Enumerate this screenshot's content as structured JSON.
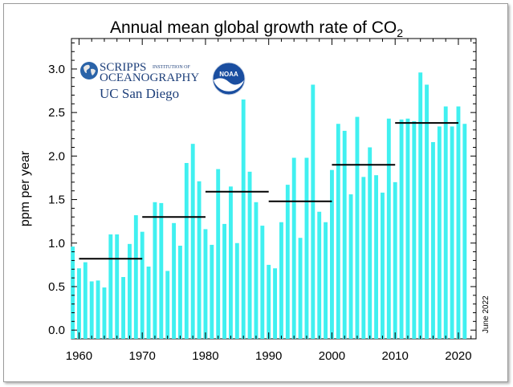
{
  "chart_data": {
    "type": "bar",
    "title_main": "Annual mean global growth rate of CO",
    "title_subscript": "2",
    "ylabel": "ppm per year",
    "xlabel": "",
    "ylim": [
      -0.1,
      3.35
    ],
    "xlim": [
      1958.8,
      2022.8
    ],
    "yticks": [
      0.0,
      0.5,
      1.0,
      1.5,
      2.0,
      2.5,
      3.0
    ],
    "ytick_labels": [
      "0.0",
      "0.5",
      "1.0",
      "1.5",
      "2.0",
      "2.5",
      "3.0"
    ],
    "xticks": [
      1960,
      1970,
      1980,
      1990,
      2000,
      2010,
      2020
    ],
    "xtick_labels": [
      "1960",
      "1970",
      "1980",
      "1990",
      "2000",
      "2010",
      "2020"
    ],
    "bar_color": "#40f0f0",
    "years": [
      1959,
      1960,
      1961,
      1962,
      1963,
      1964,
      1965,
      1966,
      1967,
      1968,
      1969,
      1970,
      1971,
      1972,
      1973,
      1974,
      1975,
      1976,
      1977,
      1978,
      1979,
      1980,
      1981,
      1982,
      1983,
      1984,
      1985,
      1986,
      1987,
      1988,
      1989,
      1990,
      1991,
      1992,
      1993,
      1994,
      1995,
      1996,
      1997,
      1998,
      1999,
      2000,
      2001,
      2002,
      2003,
      2004,
      2005,
      2006,
      2007,
      2008,
      2009,
      2010,
      2011,
      2012,
      2013,
      2014,
      2015,
      2016,
      2017,
      2018,
      2019,
      2020,
      2021
    ],
    "values": [
      0.96,
      0.71,
      0.78,
      0.56,
      0.57,
      0.49,
      1.1,
      1.1,
      0.61,
      0.99,
      1.32,
      1.13,
      0.73,
      1.47,
      1.46,
      0.68,
      1.23,
      0.97,
      1.92,
      2.14,
      1.71,
      1.16,
      0.98,
      1.85,
      1.22,
      1.65,
      1.0,
      2.65,
      1.82,
      1.47,
      1.2,
      0.75,
      0.71,
      1.24,
      1.67,
      1.98,
      1.06,
      1.98,
      2.82,
      1.36,
      1.24,
      1.84,
      2.37,
      2.29,
      1.56,
      2.45,
      1.76,
      2.1,
      1.78,
      1.58,
      2.43,
      1.7,
      2.42,
      2.43,
      2.4,
      2.96,
      2.82,
      2.16,
      2.34,
      2.57,
      2.34,
      2.57,
      2.37
    ],
    "decade_means": [
      {
        "start": 1960,
        "end": 1970,
        "value": 0.82
      },
      {
        "start": 1970,
        "end": 1980,
        "value": 1.3
      },
      {
        "start": 1980,
        "end": 1990,
        "value": 1.59
      },
      {
        "start": 1990,
        "end": 2000,
        "value": 1.48
      },
      {
        "start": 2000,
        "end": 2010,
        "value": 1.9
      },
      {
        "start": 2010,
        "end": 2020,
        "value": 2.38
      }
    ],
    "mean_line_color": "#000000",
    "annotation": "June 2022"
  },
  "logos": {
    "scripps_line1": "SCRIPPS",
    "scripps_small": "INSTITUTION OF",
    "scripps_line2": "OCEANOGRAPHY",
    "ucsd": "UC San Diego",
    "noaa": "NOAA"
  }
}
